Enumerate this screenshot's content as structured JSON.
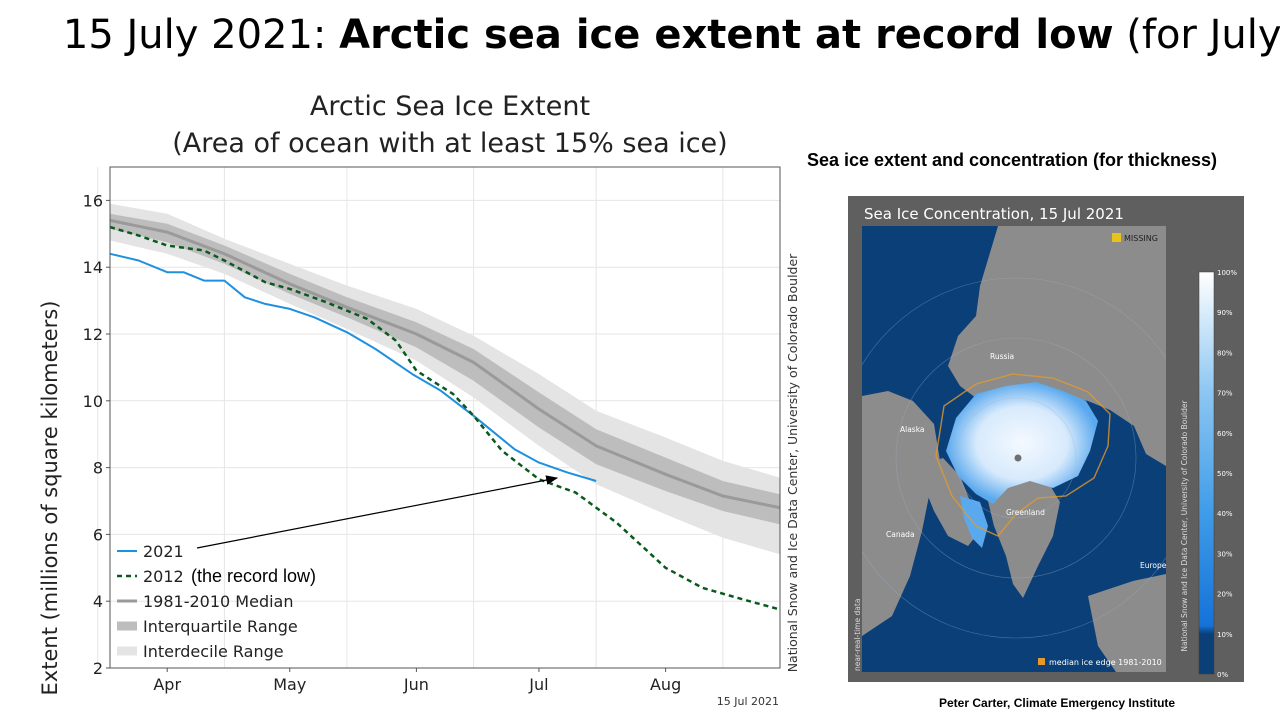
{
  "slide": {
    "title_prefix": "15 July 2021: ",
    "title_bold": "Arctic sea ice extent at record low",
    "title_suffix": " (for July)",
    "map_heading": "Sea ice extent and concentration (for thickness)",
    "credit": "Peter Carter, Climate Emergency Institute",
    "annotation": "(the record low)"
  },
  "chart_data": {
    "type": "line",
    "title": "Arctic Sea Ice Extent",
    "subtitle": "(Area of ocean with at least 15% sea ice)",
    "ylabel": "Extent (millions of square kilometers)",
    "xlabel": "",
    "ylim": [
      2,
      17
    ],
    "yticks": [
      2,
      4,
      6,
      8,
      10,
      12,
      14,
      16
    ],
    "xlim": [
      "2021-03-18",
      "2021-08-29"
    ],
    "month_labels": [
      {
        "label": "Apr",
        "date": "2021-04-01"
      },
      {
        "label": "May",
        "date": "2021-05-01"
      },
      {
        "label": "Jun",
        "date": "2021-06-01"
      },
      {
        "label": "Jul",
        "date": "2021-07-01"
      },
      {
        "label": "Aug",
        "date": "2021-08-01"
      }
    ],
    "month_gridlines": [
      "2021-03-15",
      "2021-04-15",
      "2021-05-15",
      "2021-06-15",
      "2021-07-15",
      "2021-08-15"
    ],
    "date_stamp": "15 Jul 2021",
    "source_note": "National Snow and Ice Data Center, University of Colorado Boulder",
    "grid": true,
    "legend_position": "bottom-left",
    "colors": {
      "s2021": "#1e90e0",
      "s2012": "#0a5a1e",
      "median": "#9a9a9a",
      "iqr": "#bdbdbd",
      "idr": "#e4e4e4"
    },
    "legend": [
      "2021",
      "2012",
      "1981-2010 Median",
      "Interquartile Range",
      "Interdecile Range"
    ],
    "series": [
      {
        "name": "2021",
        "style": "solid",
        "x": [
          "2021-03-18",
          "2021-03-25",
          "2021-04-01",
          "2021-04-05",
          "2021-04-10",
          "2021-04-15",
          "2021-04-20",
          "2021-04-25",
          "2021-05-01",
          "2021-05-07",
          "2021-05-15",
          "2021-05-22",
          "2021-05-31",
          "2021-06-07",
          "2021-06-15",
          "2021-06-25",
          "2021-07-01",
          "2021-07-08",
          "2021-07-15"
        ],
        "values": [
          14.4,
          14.2,
          13.85,
          13.85,
          13.6,
          13.6,
          13.1,
          12.9,
          12.75,
          12.5,
          12.05,
          11.55,
          10.8,
          10.3,
          9.55,
          8.55,
          8.15,
          7.85,
          7.6
        ]
      },
      {
        "name": "2012",
        "style": "dashed",
        "x": [
          "2021-03-18",
          "2021-03-25",
          "2021-04-01",
          "2021-04-10",
          "2021-04-15",
          "2021-04-25",
          "2021-05-01",
          "2021-05-10",
          "2021-05-20",
          "2021-05-27",
          "2021-06-01",
          "2021-06-10",
          "2021-06-15",
          "2021-06-22",
          "2021-07-01",
          "2021-07-10",
          "2021-07-20",
          "2021-08-01",
          "2021-08-10",
          "2021-08-20",
          "2021-08-29"
        ],
        "values": [
          15.2,
          14.95,
          14.65,
          14.5,
          14.2,
          13.55,
          13.35,
          12.95,
          12.45,
          11.8,
          10.9,
          10.2,
          9.55,
          8.5,
          7.65,
          7.25,
          6.35,
          5.0,
          4.4,
          4.05,
          3.75
        ]
      },
      {
        "name": "1981-2010 Median",
        "style": "solid",
        "x": [
          "2021-03-18",
          "2021-04-01",
          "2021-04-15",
          "2021-05-01",
          "2021-05-15",
          "2021-06-01",
          "2021-06-15",
          "2021-07-01",
          "2021-07-15",
          "2021-08-01",
          "2021-08-15",
          "2021-08-29"
        ],
        "values": [
          15.4,
          15.05,
          14.4,
          13.5,
          12.8,
          12.0,
          11.15,
          9.75,
          8.65,
          7.8,
          7.15,
          6.8
        ]
      }
    ],
    "bands": [
      {
        "name": "Interdecile Range",
        "x": [
          "2021-03-18",
          "2021-04-01",
          "2021-04-15",
          "2021-05-01",
          "2021-05-15",
          "2021-06-01",
          "2021-06-15",
          "2021-07-01",
          "2021-07-15",
          "2021-08-01",
          "2021-08-15",
          "2021-08-29"
        ],
        "low": [
          14.8,
          14.4,
          13.8,
          12.9,
          12.15,
          11.2,
          10.1,
          8.65,
          7.5,
          6.6,
          5.9,
          5.4
        ],
        "high": [
          15.9,
          15.6,
          14.85,
          14.1,
          13.45,
          12.75,
          11.95,
          10.8,
          9.7,
          8.9,
          8.2,
          7.7
        ]
      },
      {
        "name": "Interquartile Range",
        "x": [
          "2021-03-18",
          "2021-04-01",
          "2021-04-15",
          "2021-05-01",
          "2021-05-15",
          "2021-06-01",
          "2021-06-15",
          "2021-07-01",
          "2021-07-15",
          "2021-08-01",
          "2021-08-15",
          "2021-08-29"
        ],
        "low": [
          15.15,
          14.75,
          14.1,
          13.2,
          12.5,
          11.6,
          10.6,
          9.2,
          8.1,
          7.3,
          6.7,
          6.3
        ],
        "high": [
          15.6,
          15.3,
          14.65,
          13.8,
          13.1,
          12.35,
          11.55,
          10.25,
          9.15,
          8.3,
          7.6,
          7.2
        ]
      }
    ]
  },
  "map": {
    "title": "Sea Ice Concentration, 15 Jul 2021",
    "missing_label": "MISSING",
    "median_label": "median ice edge 1981-2010",
    "near_real_time": "near-real-time data",
    "source_note": "National Snow and Ice Data Center, University of Colorado Boulder",
    "colorbar_ticks": [
      "100%",
      "90%",
      "80%",
      "70%",
      "60%",
      "50%",
      "40%",
      "30%",
      "20%",
      "10%",
      "0%"
    ],
    "places": [
      "Russia",
      "Alaska",
      "Greenland",
      "Canada",
      "Europe"
    ],
    "colors": {
      "ocean": "#0b3f78",
      "land": "#8c8c8c",
      "frame": "#5f5f5f",
      "missing": "#e8c21a",
      "median": "#e39a2d"
    }
  }
}
